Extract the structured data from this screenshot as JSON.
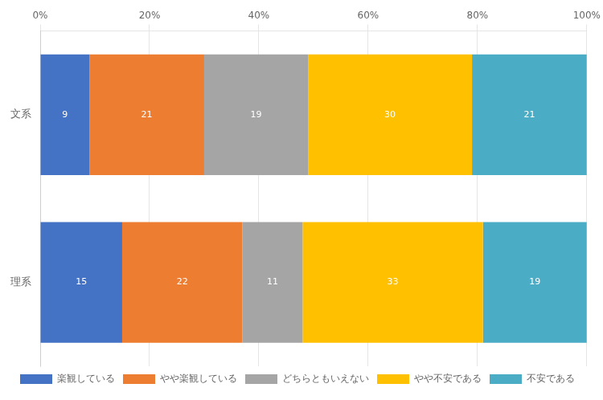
{
  "chart_data": {
    "type": "bar",
    "orientation": "horizontal",
    "stacked": true,
    "data_labels": true,
    "categories": [
      "文系",
      "理系"
    ],
    "series": [
      {
        "name": "楽観している",
        "color": "#4472C4",
        "values": [
          9,
          15
        ]
      },
      {
        "name": "やや楽観している",
        "color": "#ED7D31",
        "values": [
          21,
          22
        ]
      },
      {
        "name": "どちらともいえない",
        "color": "#A5A5A5",
        "values": [
          19,
          11
        ]
      },
      {
        "name": "やや不安である",
        "color": "#FFC000",
        "values": [
          30,
          33
        ]
      },
      {
        "name": "不安である",
        "color": "#4BACC6",
        "values": [
          21,
          19
        ]
      }
    ],
    "xlim": [
      0,
      100
    ],
    "xticks": [
      {
        "value": 0,
        "label": "0%"
      },
      {
        "value": 20,
        "label": "20%"
      },
      {
        "value": 40,
        "label": "40%"
      },
      {
        "value": 60,
        "label": "60%"
      },
      {
        "value": 80,
        "label": "80%"
      },
      {
        "value": 100,
        "label": "100%"
      }
    ],
    "grid": true,
    "legend": "bottom"
  }
}
